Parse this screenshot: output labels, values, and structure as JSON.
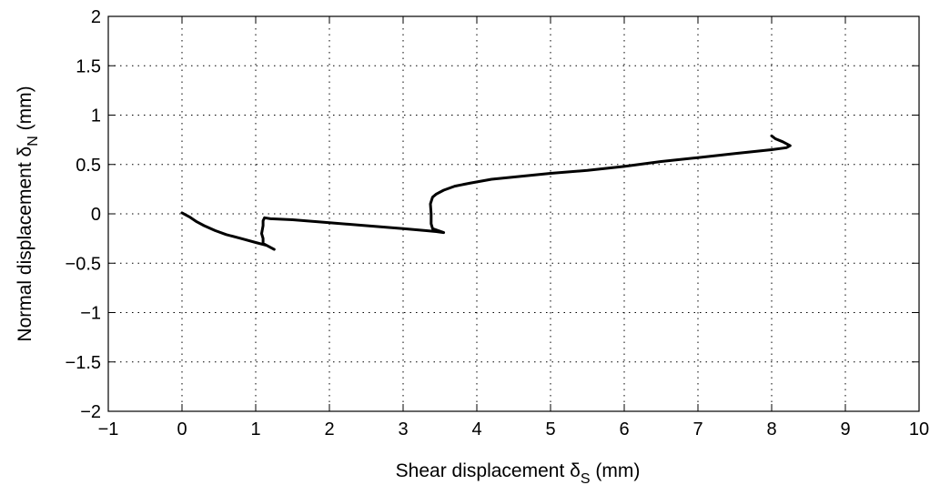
{
  "chart_data": {
    "type": "line",
    "title": "",
    "xlabel": {
      "prefix": "Shear displacement ",
      "symbol": "δ",
      "subscript": "S",
      "suffix": " (mm)"
    },
    "ylabel": {
      "prefix": "Normal displacement ",
      "symbol": "δ",
      "subscript": "N",
      "suffix": " (mm)"
    },
    "xlim": [
      -1,
      10
    ],
    "ylim": [
      -2,
      2
    ],
    "xticks": [
      -1,
      0,
      1,
      2,
      3,
      4,
      5,
      6,
      7,
      8,
      9,
      10
    ],
    "yticks": [
      -2,
      -1.5,
      -1,
      -0.5,
      0,
      0.5,
      1,
      1.5,
      2
    ],
    "xtick_labels": [
      "−1",
      "0",
      "1",
      "2",
      "3",
      "4",
      "5",
      "6",
      "7",
      "8",
      "9",
      "10"
    ],
    "ytick_labels": [
      "−2",
      "−1.5",
      "−1",
      "−0.5",
      "0",
      "0.5",
      "1",
      "1.5",
      "2"
    ],
    "grid": true,
    "line_color": "#000000",
    "series": [
      {
        "x": [
          0.0,
          0.1,
          0.2,
          0.3,
          0.45,
          0.6,
          0.8,
          1.0,
          1.15,
          1.25,
          1.1,
          1.1,
          1.08,
          1.1,
          1.1,
          1.12,
          1.2,
          1.5,
          2.0,
          2.5,
          3.0,
          3.3,
          3.45,
          3.55,
          3.4,
          3.38,
          3.38,
          3.37,
          3.4,
          3.45,
          3.55,
          3.7,
          3.9,
          4.2,
          4.6,
          5.0,
          5.5,
          6.0,
          6.5,
          7.0,
          7.5,
          8.0,
          8.2,
          8.25,
          8.15,
          8.05,
          8.0
        ],
        "y": [
          0.01,
          -0.03,
          -0.08,
          -0.12,
          -0.17,
          -0.21,
          -0.25,
          -0.29,
          -0.32,
          -0.36,
          -0.3,
          -0.25,
          -0.2,
          -0.12,
          -0.07,
          -0.04,
          -0.05,
          -0.06,
          -0.09,
          -0.12,
          -0.15,
          -0.17,
          -0.18,
          -0.19,
          -0.15,
          -0.1,
          0.0,
          0.1,
          0.17,
          0.2,
          0.24,
          0.28,
          0.31,
          0.35,
          0.38,
          0.41,
          0.44,
          0.48,
          0.53,
          0.57,
          0.61,
          0.65,
          0.67,
          0.69,
          0.73,
          0.76,
          0.79
        ]
      }
    ]
  }
}
